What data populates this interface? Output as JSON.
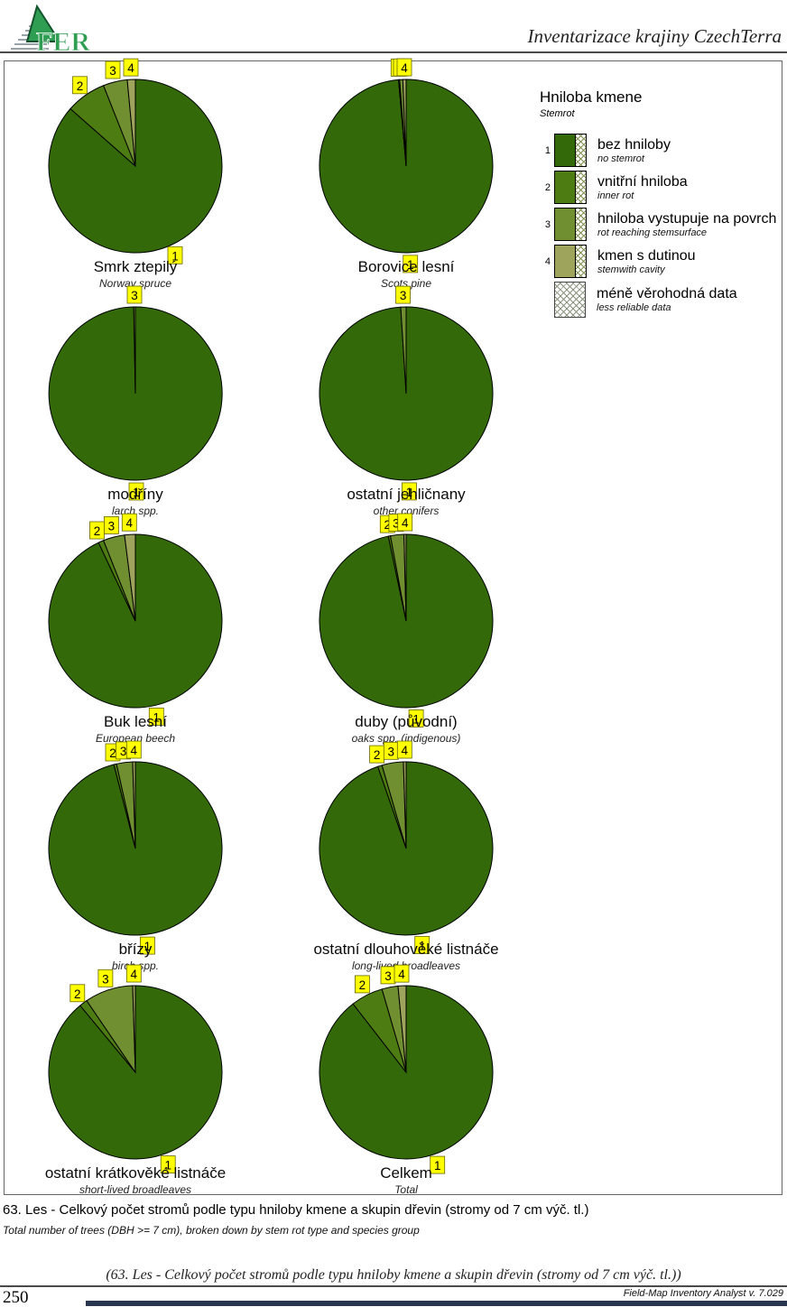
{
  "header": {
    "title": "Inventarizace krajiny CzechTerra"
  },
  "legend": {
    "title": "Hniloba kmene",
    "subtitle": "Stemrot",
    "items": [
      {
        "num": "1",
        "label": "bez hniloby",
        "sublabel": "no stemrot",
        "color": "#336909"
      },
      {
        "num": "2",
        "label": "vnitřní hniloba",
        "sublabel": "inner rot",
        "color": "#4D7D12"
      },
      {
        "num": "3",
        "label": "hniloba vystupuje na povrch",
        "sublabel": "rot reaching stemsurface",
        "color": "#6F8F31"
      },
      {
        "num": "4",
        "label": "kmen s dutinou",
        "sublabel": "stemwith cavity",
        "color": "#9EA45B"
      },
      {
        "num": "",
        "label": "méně věrohodná data",
        "sublabel": "less reliable data",
        "color": "hatch"
      }
    ]
  },
  "slice_colors": [
    "#336909",
    "#4D7D12",
    "#6F8F31",
    "#9EA45B"
  ],
  "label_bg": "#FFFF00",
  "chart_data": [
    {
      "type": "pie",
      "title": "Smrk ztepilý",
      "subtitle": "Norway spruce",
      "categories": [
        "1",
        "2",
        "3",
        "4"
      ],
      "values": [
        86.5,
        7.5,
        4.5,
        1.5
      ]
    },
    {
      "type": "pie",
      "title": "Borovice lesní",
      "subtitle": "Scots pine",
      "categories": [
        "1",
        "2",
        "3",
        "4"
      ],
      "values": [
        98.6,
        0.2,
        0.6,
        0.6
      ]
    },
    {
      "type": "pie",
      "title": "modříny",
      "subtitle": "larch spp.",
      "categories": [
        "1",
        "2",
        "3",
        "4"
      ],
      "values": [
        99.7,
        0,
        0.3,
        0
      ]
    },
    {
      "type": "pie",
      "title": "ostatní jehličnany",
      "subtitle": "other conifers",
      "categories": [
        "1",
        "2",
        "3",
        "4"
      ],
      "values": [
        99.0,
        0,
        1.0,
        0
      ]
    },
    {
      "type": "pie",
      "title": "Buk lesní",
      "subtitle": "European beech",
      "categories": [
        "1",
        "2",
        "3",
        "4"
      ],
      "values": [
        93.0,
        1.0,
        4.0,
        2.0
      ]
    },
    {
      "type": "pie",
      "title": "duby (původní)",
      "subtitle": "oaks spp. (indigenous)",
      "categories": [
        "1",
        "2",
        "3",
        "4"
      ],
      "values": [
        96.7,
        0.4,
        2.5,
        0.4
      ]
    },
    {
      "type": "pie",
      "title": "břízy",
      "subtitle": "birch spp.",
      "categories": [
        "1",
        "2",
        "3",
        "4"
      ],
      "values": [
        96.0,
        0.5,
        3.0,
        0.5
      ]
    },
    {
      "type": "pie",
      "title": "ostatní dlouhověké listnáče",
      "subtitle": "long-lived broadleaves",
      "categories": [
        "1",
        "2",
        "3",
        "4"
      ],
      "values": [
        94.7,
        0.8,
        4.0,
        0.5
      ]
    },
    {
      "type": "pie",
      "title": "ostatní krátkověké listnáče",
      "subtitle": "short-lived broadleaves",
      "categories": [
        "1",
        "2",
        "3",
        "4"
      ],
      "values": [
        89.0,
        1.5,
        9.0,
        0.5
      ]
    },
    {
      "type": "pie",
      "title": "Celkem",
      "subtitle": "Total",
      "categories": [
        "1",
        "2",
        "3",
        "4"
      ],
      "values": [
        89.5,
        6.0,
        3.0,
        1.5
      ]
    }
  ],
  "caption": {
    "cz": "63. Les - Celkový počet stromů podle typu hniloby kmene a skupin dřevin (stromy od 7 cm výč. tl.)",
    "en": "Total number of trees (DBH >= 7 cm), broken down by stem rot type and species group"
  },
  "footer": {
    "footnote": "(63. Les - Celkový počet stromů podle typu hniloby kmene a skupin dřevin (stromy od 7 cm výč. tl.))",
    "page_number": "250",
    "app_version": "Field-Map Inventory Analyst v. 7.029"
  }
}
